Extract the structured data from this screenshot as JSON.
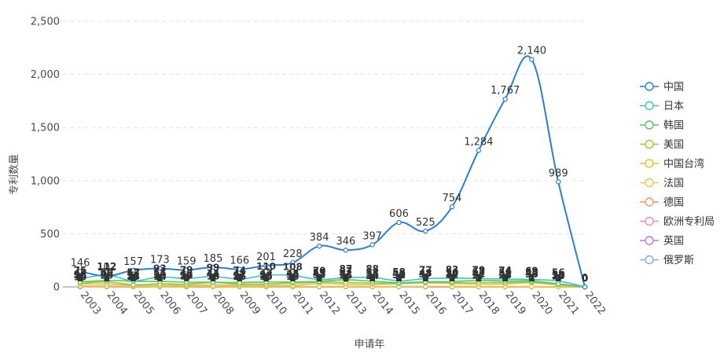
{
  "chart_data": {
    "type": "line",
    "xlabel": "申请年",
    "ylabel": "专利数量",
    "ylim": [
      0,
      2500
    ],
    "yticks": [
      "0",
      "500",
      "1,000",
      "1,500",
      "2,000",
      "2,500"
    ],
    "grid": "horizontal-dashed",
    "legend_position": "right",
    "categories": [
      "2003",
      "2004",
      "2005",
      "2006",
      "2007",
      "2008",
      "2009",
      "2010",
      "2011",
      "2012",
      "2013",
      "2014",
      "2015",
      "2016",
      "2017",
      "2018",
      "2019",
      "2020",
      "2021",
      "2022"
    ],
    "series": [
      {
        "name": "中国",
        "color": "#2a7fd4",
        "values": [
          146,
          102,
          157,
          173,
          159,
          185,
          166,
          201,
          228,
          384,
          346,
          397,
          606,
          525,
          754,
          1284,
          1767,
          2140,
          989,
          0
        ]
      },
      {
        "name": "日本",
        "color": "#3fc1d4",
        "values": [
          75,
          112,
          57,
          93,
          79,
          99,
          74,
          110,
          108,
          70,
          87,
          88,
          58,
          77,
          83,
          79,
          74,
          69,
          56,
          0
        ]
      },
      {
        "name": "韩国",
        "color": "#52c46b",
        "values": [
          47,
          60,
          53,
          51,
          45,
          44,
          41,
          47,
          45,
          51,
          67,
          53,
          40,
          48,
          50,
          62,
          56,
          55,
          30,
          0
        ]
      },
      {
        "name": "美国",
        "color": "#9ccc2e",
        "values": [
          33,
          46,
          21,
          29,
          26,
          41,
          27,
          28,
          35,
          45,
          42,
          36,
          31,
          43,
          39,
          41,
          41,
          44,
          24,
          0
        ]
      },
      {
        "name": "中国台湾",
        "color": "#d9c92a",
        "values": [
          28,
          26,
          15,
          14,
          17,
          18,
          16,
          15,
          15,
          32,
          26,
          24,
          30,
          37,
          32,
          27,
          28,
          38,
          17,
          0
        ]
      },
      {
        "name": "法国",
        "color": "#f2c250",
        "values": [
          10,
          8,
          6,
          5,
          8,
          6,
          6,
          5,
          6,
          5,
          6,
          5,
          4,
          6,
          5,
          5,
          4,
          4,
          1,
          0
        ]
      },
      {
        "name": "德国",
        "color": "#f4956a",
        "values": [
          6,
          5,
          4,
          4,
          4,
          3,
          3,
          3,
          4,
          3,
          4,
          3,
          3,
          3,
          2,
          2,
          3,
          2,
          1,
          0
        ]
      },
      {
        "name": "欧洲专利局",
        "color": "#f08cb0",
        "values": [
          4,
          3,
          3,
          3,
          2,
          2,
          3,
          2,
          3,
          2,
          3,
          2,
          2,
          2,
          2,
          2,
          1,
          1,
          0,
          0
        ]
      },
      {
        "name": "英国",
        "color": "#b57be8",
        "values": [
          2,
          2,
          1,
          2,
          2,
          1,
          1,
          1,
          1,
          1,
          1,
          1,
          1,
          1,
          1,
          1,
          1,
          1,
          0,
          0
        ]
      },
      {
        "name": "俄罗斯",
        "color": "#8fa8e0",
        "values": [
          1,
          1,
          0,
          1,
          0,
          0,
          1,
          0,
          1,
          0,
          1,
          0,
          1,
          0,
          0,
          1,
          0,
          1,
          0,
          0
        ]
      }
    ]
  }
}
